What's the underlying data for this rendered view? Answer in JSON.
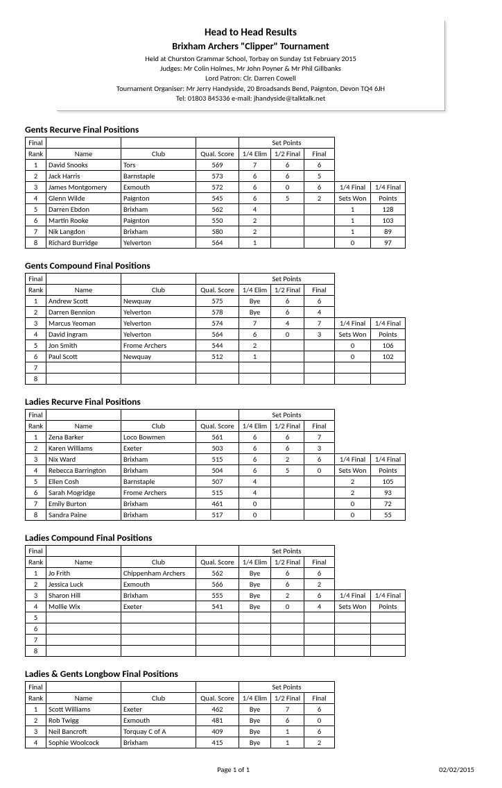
{
  "header": {
    "title1": "Head to Head Results",
    "title2": "Brixham Archers \"Clipper\" Tournament",
    "line1": "Held at Churston Grammar School, Torbay on Sunday 1st February 2015",
    "line2": "Judges: Mr Colin Holmes, Mr John Poyner & Mr Phil Gillbanks",
    "line3": "Lord Patron: Clr. Darren Cowell",
    "line4": "Tournament Organiser: Mr Jerry Handyside, 20 Broadsands Bend, Paignton, Devon TQ4 6JH",
    "line5": "Tel:  01803 845336                          e-mail: jhandyside@talktalk.net"
  },
  "labels": {
    "finalRank1": "Final",
    "finalRank2": "Rank",
    "name": "Name",
    "club": "Club",
    "qual": "Qual. Score",
    "setpoints": "Set Points",
    "elim": "1/4 Elim",
    "half": "1/2 Final",
    "final": "Final",
    "qfinal": "1/4 Final",
    "setswon": "Sets Won",
    "points": "Points"
  },
  "sections": [
    {
      "title": "Gents Recurve Final Positions",
      "extraBreakRow": 2,
      "rows": [
        {
          "rank": "1",
          "name": "David Snooks",
          "club": "Tors",
          "qual": "569",
          "elim": "7",
          "half": "6",
          "final": "6",
          "swon": "",
          "pts": ""
        },
        {
          "rank": "2",
          "name": "Jack Harris",
          "club": "Barnstaple",
          "qual": "573",
          "elim": "6",
          "half": "6",
          "final": "5",
          "swon": "",
          "pts": ""
        },
        {
          "rank": "3",
          "name": "James Montgomery",
          "club": "Exmouth",
          "qual": "572",
          "elim": "6",
          "half": "0",
          "final": "6",
          "swon": "",
          "pts": ""
        },
        {
          "rank": "4",
          "name": "Glenn Wilde",
          "club": "Paignton",
          "qual": "545",
          "elim": "6",
          "half": "5",
          "final": "2",
          "swon": "",
          "pts": ""
        },
        {
          "rank": "5",
          "name": "Darren Ebdon",
          "club": "Brixham",
          "qual": "562",
          "elim": "4",
          "half": "",
          "final": "",
          "swon": "1",
          "pts": "128"
        },
        {
          "rank": "6",
          "name": "Martin Rooke",
          "club": "Paignton",
          "qual": "550",
          "elim": "2",
          "half": "",
          "final": "",
          "swon": "1",
          "pts": "103"
        },
        {
          "rank": "7",
          "name": "Nik Langdon",
          "club": "Brixham",
          "qual": "580",
          "elim": "2",
          "half": "",
          "final": "",
          "swon": "1",
          "pts": "89"
        },
        {
          "rank": "8",
          "name": "Richard Burridge",
          "club": "Yelverton",
          "qual": "564",
          "elim": "1",
          "half": "",
          "final": "",
          "swon": "0",
          "pts": "97"
        }
      ]
    },
    {
      "title": "Gents Compound Final Positions",
      "extraBreakRow": 2,
      "rows": [
        {
          "rank": "1",
          "name": "Andrew Scott",
          "club": "Newquay",
          "qual": "575",
          "elim": "Bye",
          "half": "6",
          "final": "6",
          "swon": "",
          "pts": ""
        },
        {
          "rank": "2",
          "name": "Darren Bennion",
          "club": "Yelverton",
          "qual": "578",
          "elim": "Bye",
          "half": "6",
          "final": "4",
          "swon": "",
          "pts": ""
        },
        {
          "rank": "3",
          "name": "Marcus Yeoman",
          "club": "Yelverton",
          "qual": "574",
          "elim": "7",
          "half": "4",
          "final": "7",
          "swon": "",
          "pts": ""
        },
        {
          "rank": "4",
          "name": "David ingram",
          "club": "Yelverton",
          "qual": "564",
          "elim": "6",
          "half": "0",
          "final": "3",
          "swon": "",
          "pts": ""
        },
        {
          "rank": "5",
          "name": "Jon Smith",
          "club": "Frome Archers",
          "qual": "544",
          "elim": "2",
          "half": "",
          "final": "",
          "swon": "0",
          "pts": "106"
        },
        {
          "rank": "6",
          "name": "Paul Scott",
          "club": "Newquay",
          "qual": "512",
          "elim": "1",
          "half": "",
          "final": "",
          "swon": "0",
          "pts": "102"
        },
        {
          "rank": "7",
          "name": "",
          "club": "",
          "qual": "",
          "elim": "",
          "half": "",
          "final": "",
          "swon": "",
          "pts": ""
        },
        {
          "rank": "8",
          "name": "",
          "club": "",
          "qual": "",
          "elim": "",
          "half": "",
          "final": "",
          "swon": "",
          "pts": ""
        }
      ]
    },
    {
      "title": "Ladies Recurve Final Positions",
      "extraBreakRow": 2,
      "rows": [
        {
          "rank": "1",
          "name": "Zena Barker",
          "club": "Loco Bowmen",
          "qual": "561",
          "elim": "6",
          "half": "6",
          "final": "7",
          "swon": "",
          "pts": ""
        },
        {
          "rank": "2",
          "name": "Karen Williams",
          "club": "Exeter",
          "qual": "503",
          "elim": "6",
          "half": "6",
          "final": "3",
          "swon": "",
          "pts": ""
        },
        {
          "rank": "3",
          "name": "Nix Ward",
          "club": "Brixham",
          "qual": "515",
          "elim": "6",
          "half": "2",
          "final": "6",
          "swon": "",
          "pts": ""
        },
        {
          "rank": "4",
          "name": "Rebecca Barrington",
          "club": "Brixham",
          "qual": "504",
          "elim": "6",
          "half": "5",
          "final": "0",
          "swon": "",
          "pts": ""
        },
        {
          "rank": "5",
          "name": "Ellen Cosh",
          "club": "Barnstaple",
          "qual": "507",
          "elim": "4",
          "half": "",
          "final": "",
          "swon": "2",
          "pts": "105"
        },
        {
          "rank": "6",
          "name": "Sarah Mogridge",
          "club": "Frome Archers",
          "qual": "515",
          "elim": "4",
          "half": "",
          "final": "",
          "swon": "2",
          "pts": "93"
        },
        {
          "rank": "7",
          "name": "Emily Burton",
          "club": "Brixham",
          "qual": "461",
          "elim": "0",
          "half": "",
          "final": "",
          "swon": "0",
          "pts": "72"
        },
        {
          "rank": "8",
          "name": "Sandra Paine",
          "club": "Brixham",
          "qual": "517",
          "elim": "0",
          "half": "",
          "final": "",
          "swon": "0",
          "pts": "55"
        }
      ]
    },
    {
      "title": "Ladies Compound Final Positions",
      "extraBreakRow": 2,
      "rows": [
        {
          "rank": "1",
          "name": "Jo Frith",
          "club": "Chippenham Archers",
          "qual": "562",
          "elim": "Bye",
          "half": "6",
          "final": "6",
          "swon": "",
          "pts": ""
        },
        {
          "rank": "2",
          "name": "Jessica Luck",
          "club": "Exmouth",
          "qual": "566",
          "elim": "Bye",
          "half": "6",
          "final": "2",
          "swon": "",
          "pts": ""
        },
        {
          "rank": "3",
          "name": "Sharon Hill",
          "club": "Brixham",
          "qual": "555",
          "elim": "Bye",
          "half": "2",
          "final": "6",
          "swon": "",
          "pts": ""
        },
        {
          "rank": "4",
          "name": "Mollie Wix",
          "club": "Exeter",
          "qual": "541",
          "elim": "Bye",
          "half": "0",
          "final": "4",
          "swon": "",
          "pts": ""
        },
        {
          "rank": "5",
          "name": "",
          "club": "",
          "qual": "",
          "elim": "",
          "half": "",
          "final": "",
          "swon": "",
          "pts": ""
        },
        {
          "rank": "6",
          "name": "",
          "club": "",
          "qual": "",
          "elim": "",
          "half": "",
          "final": "",
          "swon": "",
          "pts": ""
        },
        {
          "rank": "7",
          "name": "",
          "club": "",
          "qual": "",
          "elim": "",
          "half": "",
          "final": "",
          "swon": "",
          "pts": ""
        },
        {
          "rank": "8",
          "name": "",
          "club": "",
          "qual": "",
          "elim": "",
          "half": "",
          "final": "",
          "swon": "",
          "pts": ""
        }
      ]
    },
    {
      "title": "Ladies & Gents Longbow Final Positions",
      "extraBreakRow": -1,
      "rows": [
        {
          "rank": "1",
          "name": "Scott Williams",
          "club": "Exeter",
          "qual": "462",
          "elim": "Bye",
          "half": "7",
          "final": "6",
          "swon": "",
          "pts": ""
        },
        {
          "rank": "2",
          "name": "Rob Twigg",
          "club": "Exmouth",
          "qual": "481",
          "elim": "Bye",
          "half": "6",
          "final": "0",
          "swon": "",
          "pts": ""
        },
        {
          "rank": "3",
          "name": "Neil Bancroft",
          "club": "Torquay C of A",
          "qual": "409",
          "elim": "Bye",
          "half": "1",
          "final": "6",
          "swon": "",
          "pts": ""
        },
        {
          "rank": "4",
          "name": "Sophie Woolcock",
          "club": "Brixham",
          "qual": "415",
          "elim": "Bye",
          "half": "1",
          "final": "2",
          "swon": "",
          "pts": ""
        }
      ]
    }
  ],
  "footer": {
    "page": "Page 1 of 1",
    "date": "02/02/2015"
  }
}
